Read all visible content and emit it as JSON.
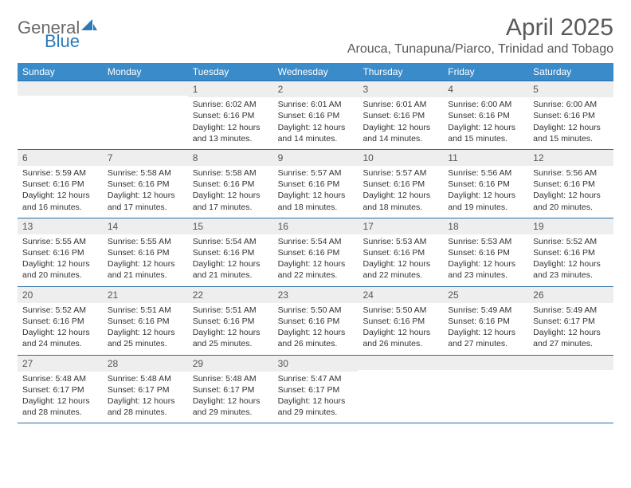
{
  "brand": {
    "general": "General",
    "blue": "Blue"
  },
  "title": "April 2025",
  "location": "Arouca, Tunapuna/Piarco, Trinidad and Tobago",
  "colors": {
    "header_bg": "#3a8bc9",
    "week_divider": "#2a6ea8",
    "daynum_bg": "#eeeeee",
    "text": "#333333",
    "title_text": "#595959",
    "logo_gray": "#6a6a6a",
    "logo_blue": "#2a7ab9"
  },
  "dow": [
    "Sunday",
    "Monday",
    "Tuesday",
    "Wednesday",
    "Thursday",
    "Friday",
    "Saturday"
  ],
  "labels": {
    "sunrise": "Sunrise: ",
    "sunset": "Sunset: ",
    "daylight": "Daylight: "
  },
  "weeks": [
    [
      {
        "n": "",
        "sunrise": "",
        "sunset": "",
        "daylight": ""
      },
      {
        "n": "",
        "sunrise": "",
        "sunset": "",
        "daylight": ""
      },
      {
        "n": "1",
        "sunrise": "6:02 AM",
        "sunset": "6:16 PM",
        "daylight": "12 hours and 13 minutes."
      },
      {
        "n": "2",
        "sunrise": "6:01 AM",
        "sunset": "6:16 PM",
        "daylight": "12 hours and 14 minutes."
      },
      {
        "n": "3",
        "sunrise": "6:01 AM",
        "sunset": "6:16 PM",
        "daylight": "12 hours and 14 minutes."
      },
      {
        "n": "4",
        "sunrise": "6:00 AM",
        "sunset": "6:16 PM",
        "daylight": "12 hours and 15 minutes."
      },
      {
        "n": "5",
        "sunrise": "6:00 AM",
        "sunset": "6:16 PM",
        "daylight": "12 hours and 15 minutes."
      }
    ],
    [
      {
        "n": "6",
        "sunrise": "5:59 AM",
        "sunset": "6:16 PM",
        "daylight": "12 hours and 16 minutes."
      },
      {
        "n": "7",
        "sunrise": "5:58 AM",
        "sunset": "6:16 PM",
        "daylight": "12 hours and 17 minutes."
      },
      {
        "n": "8",
        "sunrise": "5:58 AM",
        "sunset": "6:16 PM",
        "daylight": "12 hours and 17 minutes."
      },
      {
        "n": "9",
        "sunrise": "5:57 AM",
        "sunset": "6:16 PM",
        "daylight": "12 hours and 18 minutes."
      },
      {
        "n": "10",
        "sunrise": "5:57 AM",
        "sunset": "6:16 PM",
        "daylight": "12 hours and 18 minutes."
      },
      {
        "n": "11",
        "sunrise": "5:56 AM",
        "sunset": "6:16 PM",
        "daylight": "12 hours and 19 minutes."
      },
      {
        "n": "12",
        "sunrise": "5:56 AM",
        "sunset": "6:16 PM",
        "daylight": "12 hours and 20 minutes."
      }
    ],
    [
      {
        "n": "13",
        "sunrise": "5:55 AM",
        "sunset": "6:16 PM",
        "daylight": "12 hours and 20 minutes."
      },
      {
        "n": "14",
        "sunrise": "5:55 AM",
        "sunset": "6:16 PM",
        "daylight": "12 hours and 21 minutes."
      },
      {
        "n": "15",
        "sunrise": "5:54 AM",
        "sunset": "6:16 PM",
        "daylight": "12 hours and 21 minutes."
      },
      {
        "n": "16",
        "sunrise": "5:54 AM",
        "sunset": "6:16 PM",
        "daylight": "12 hours and 22 minutes."
      },
      {
        "n": "17",
        "sunrise": "5:53 AM",
        "sunset": "6:16 PM",
        "daylight": "12 hours and 22 minutes."
      },
      {
        "n": "18",
        "sunrise": "5:53 AM",
        "sunset": "6:16 PM",
        "daylight": "12 hours and 23 minutes."
      },
      {
        "n": "19",
        "sunrise": "5:52 AM",
        "sunset": "6:16 PM",
        "daylight": "12 hours and 23 minutes."
      }
    ],
    [
      {
        "n": "20",
        "sunrise": "5:52 AM",
        "sunset": "6:16 PM",
        "daylight": "12 hours and 24 minutes."
      },
      {
        "n": "21",
        "sunrise": "5:51 AM",
        "sunset": "6:16 PM",
        "daylight": "12 hours and 25 minutes."
      },
      {
        "n": "22",
        "sunrise": "5:51 AM",
        "sunset": "6:16 PM",
        "daylight": "12 hours and 25 minutes."
      },
      {
        "n": "23",
        "sunrise": "5:50 AM",
        "sunset": "6:16 PM",
        "daylight": "12 hours and 26 minutes."
      },
      {
        "n": "24",
        "sunrise": "5:50 AM",
        "sunset": "6:16 PM",
        "daylight": "12 hours and 26 minutes."
      },
      {
        "n": "25",
        "sunrise": "5:49 AM",
        "sunset": "6:16 PM",
        "daylight": "12 hours and 27 minutes."
      },
      {
        "n": "26",
        "sunrise": "5:49 AM",
        "sunset": "6:17 PM",
        "daylight": "12 hours and 27 minutes."
      }
    ],
    [
      {
        "n": "27",
        "sunrise": "5:48 AM",
        "sunset": "6:17 PM",
        "daylight": "12 hours and 28 minutes."
      },
      {
        "n": "28",
        "sunrise": "5:48 AM",
        "sunset": "6:17 PM",
        "daylight": "12 hours and 28 minutes."
      },
      {
        "n": "29",
        "sunrise": "5:48 AM",
        "sunset": "6:17 PM",
        "daylight": "12 hours and 29 minutes."
      },
      {
        "n": "30",
        "sunrise": "5:47 AM",
        "sunset": "6:17 PM",
        "daylight": "12 hours and 29 minutes."
      },
      {
        "n": "",
        "sunrise": "",
        "sunset": "",
        "daylight": ""
      },
      {
        "n": "",
        "sunrise": "",
        "sunset": "",
        "daylight": ""
      },
      {
        "n": "",
        "sunrise": "",
        "sunset": "",
        "daylight": ""
      }
    ]
  ]
}
